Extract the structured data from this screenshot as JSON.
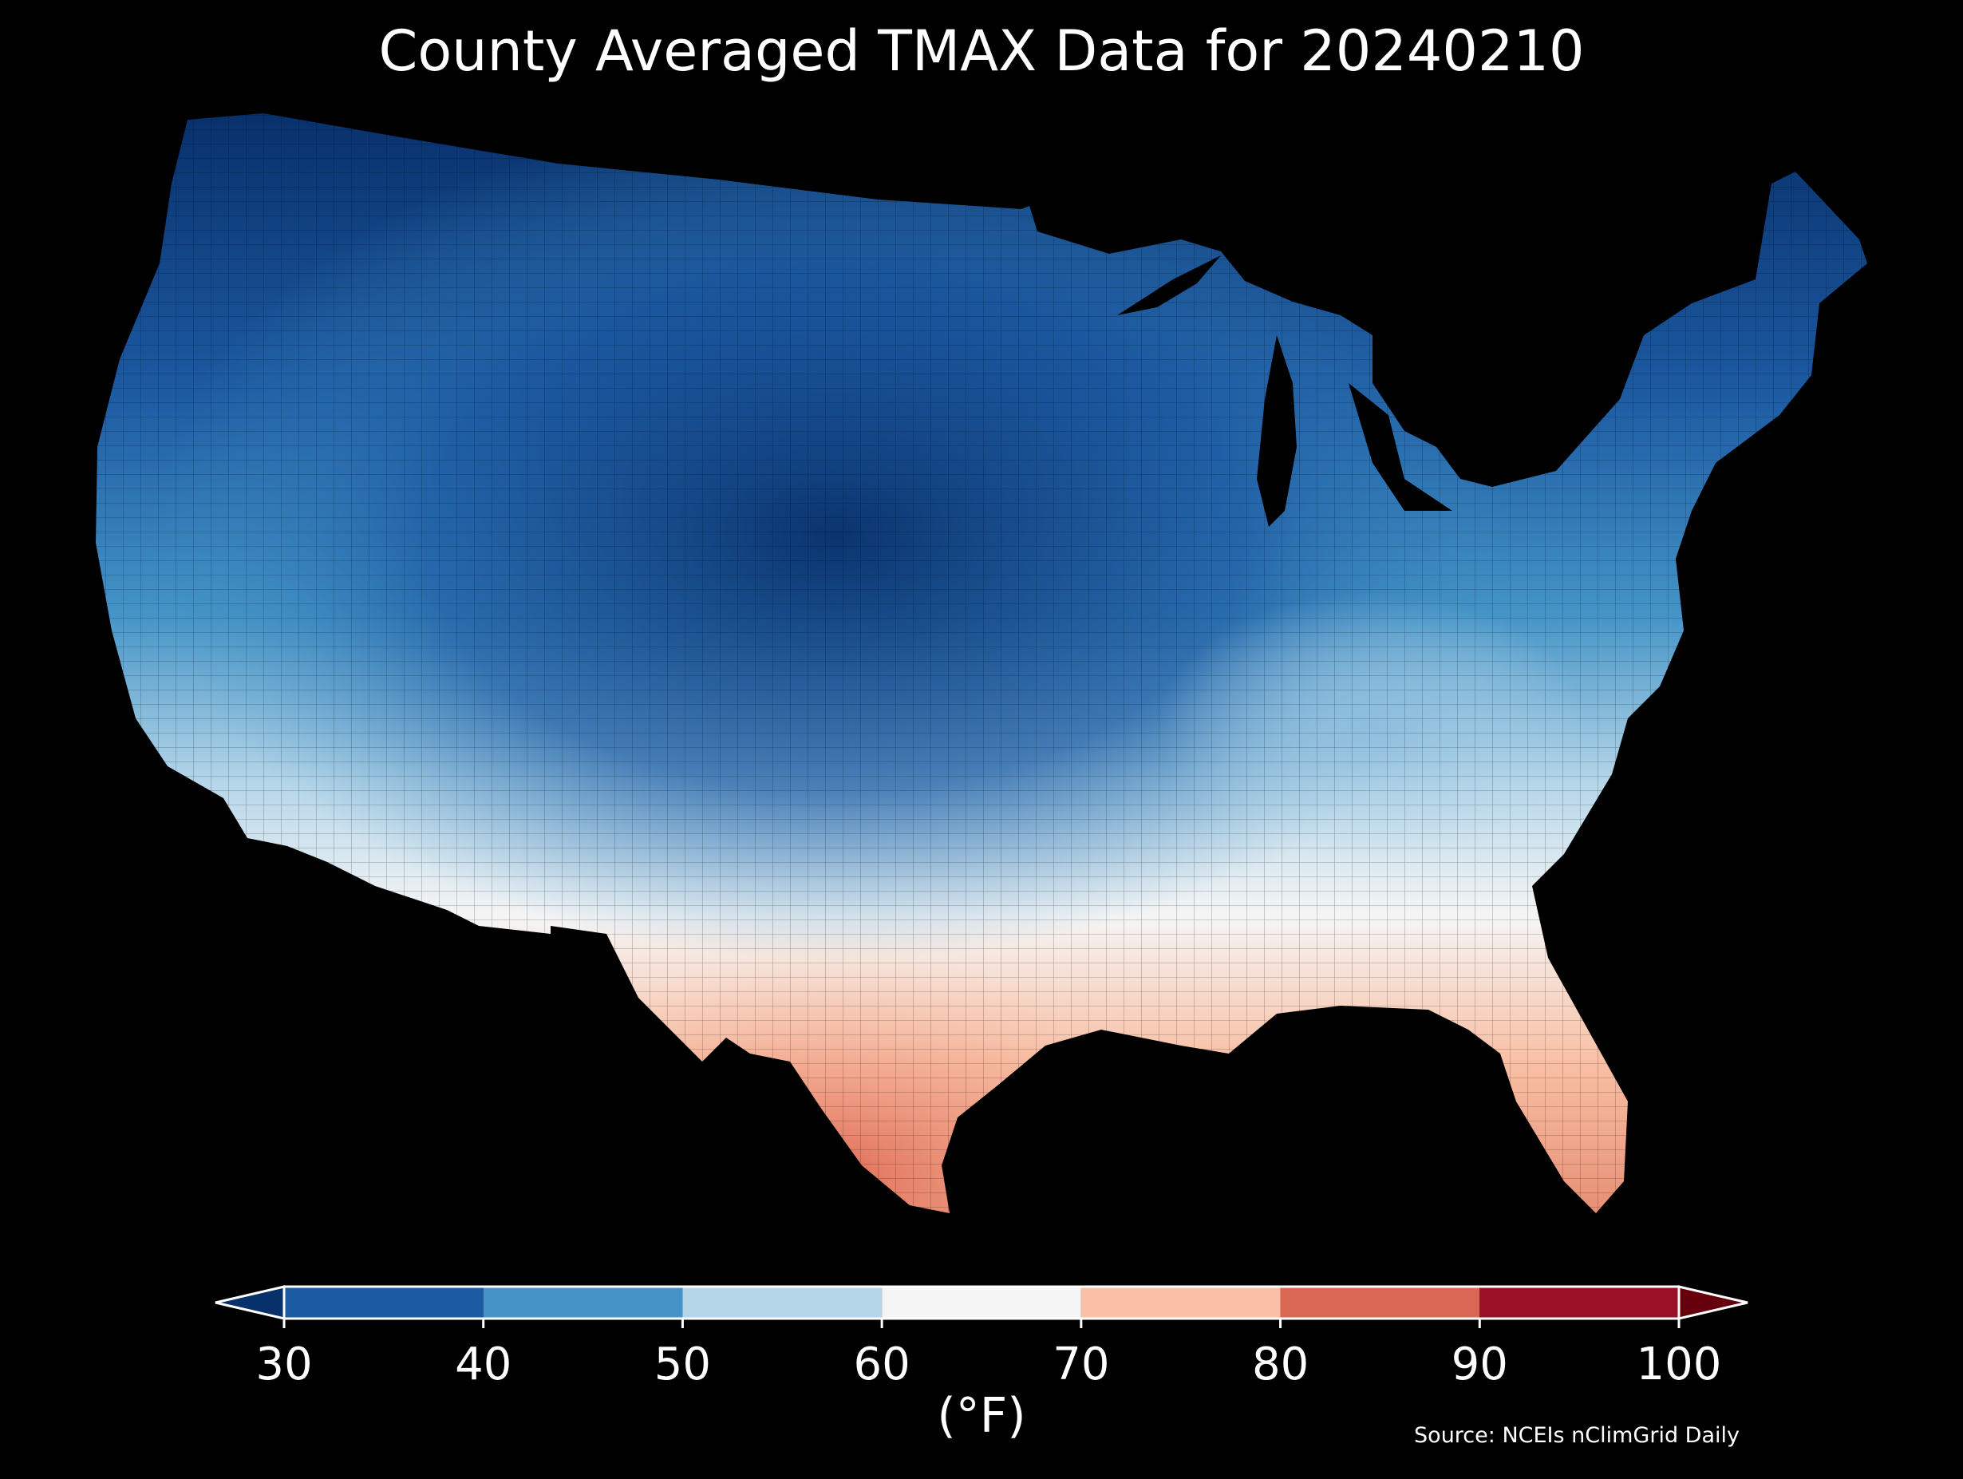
{
  "title": "County Averaged TMAX Data for 20240210",
  "colorbar": {
    "units_label": "(°F)",
    "ticks": [
      "30",
      "40",
      "50",
      "60",
      "70",
      "80",
      "90",
      "100"
    ],
    "extend_low_color": "#08306b",
    "extend_high_color": "#67000d",
    "bins": [
      {
        "from": 30,
        "to": 40,
        "color": "#1c5aa2"
      },
      {
        "from": 40,
        "to": 50,
        "color": "#4494c7"
      },
      {
        "from": 50,
        "to": 60,
        "color": "#b5d6e9"
      },
      {
        "from": 60,
        "to": 70,
        "color": "#f5f5f5"
      },
      {
        "from": 70,
        "to": 80,
        "color": "#f9c0a5"
      },
      {
        "from": 80,
        "to": 90,
        "color": "#da6754"
      },
      {
        "from": 90,
        "to": 100,
        "color": "#9a1026"
      }
    ]
  },
  "source": "Source: NCEIs nClimGrid Daily",
  "background_color": "#000000"
}
